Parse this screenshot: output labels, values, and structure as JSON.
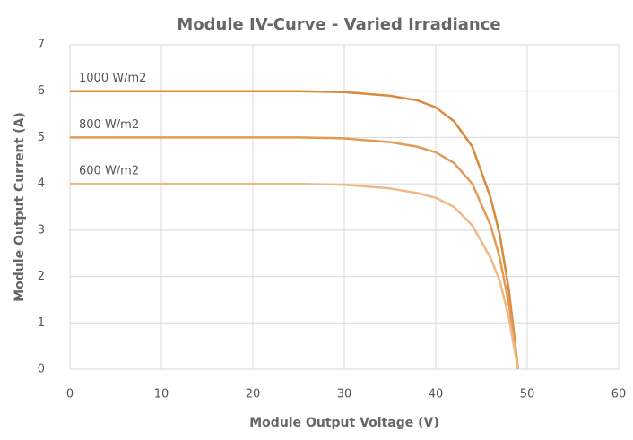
{
  "chart_data": {
    "type": "line",
    "title": "Module IV-Curve - Varied Irradiance",
    "xlabel": "Module Output Voltage (V)",
    "ylabel": "Module Output Current (A)",
    "x": [
      0,
      5,
      10,
      15,
      20,
      25,
      30,
      35,
      38,
      40,
      42,
      44,
      46,
      47,
      48,
      49
    ],
    "series": [
      {
        "name": "1000 W/m2",
        "color": "#d98a3a",
        "values": [
          6,
          6,
          6,
          6,
          6,
          6,
          5.98,
          5.9,
          5.8,
          5.65,
          5.35,
          4.8,
          3.7,
          2.9,
          1.7,
          0
        ]
      },
      {
        "name": "800 W/m2",
        "color": "#e39a55",
        "values": [
          5,
          5,
          5,
          5,
          5,
          5,
          4.98,
          4.9,
          4.8,
          4.68,
          4.45,
          4.0,
          3.1,
          2.4,
          1.4,
          0
        ]
      },
      {
        "name": "600 W/m2",
        "color": "#f0b884",
        "values": [
          4,
          4,
          4,
          4,
          4,
          4,
          3.98,
          3.9,
          3.8,
          3.7,
          3.5,
          3.1,
          2.4,
          1.9,
          1.1,
          0
        ]
      }
    ],
    "xlim": [
      0,
      60
    ],
    "xticks": [
      0,
      10,
      20,
      30,
      40,
      50,
      60
    ],
    "ylim": [
      0,
      7
    ],
    "yticks": [
      0,
      1,
      2,
      3,
      4,
      5,
      6,
      7
    ],
    "grid": true
  }
}
